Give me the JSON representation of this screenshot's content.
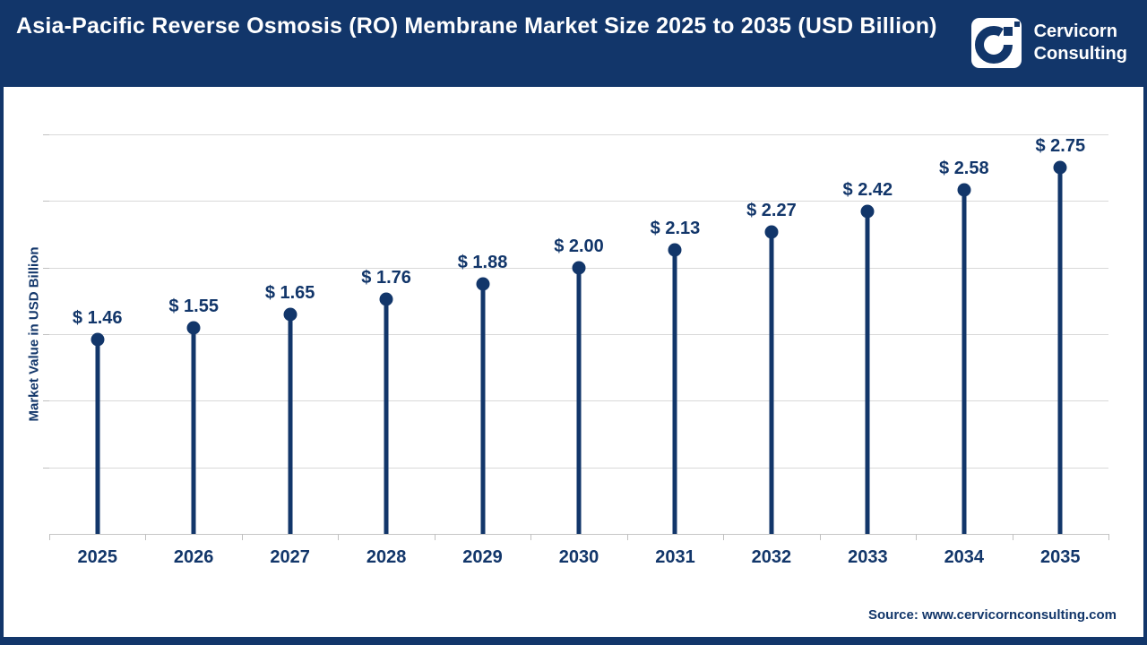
{
  "header": {
    "title": "Asia-Pacific Reverse Osmosis (RO) Membrane Market Size 2025 to 2035 (USD Billion)"
  },
  "logo": {
    "name": "cervicorn-consulting-logo",
    "line1": "Cervicorn",
    "line2": "Consulting"
  },
  "source": {
    "text": "Source: www.cervicornconsulting.com"
  },
  "colors": {
    "navy": "#12366A",
    "gridline": "#D9D9D9",
    "axis": "#C6C6C6",
    "tick": "#C0C0C0",
    "background": "#FFFFFF"
  },
  "chart_data": {
    "type": "bar",
    "variant": "lollipop",
    "title": "Asia-Pacific Reverse Osmosis (RO) Membrane Market Size 2025 to 2035 (USD Billion)",
    "categories": [
      "2025",
      "2026",
      "2027",
      "2028",
      "2029",
      "2030",
      "2031",
      "2032",
      "2033",
      "2034",
      "2035"
    ],
    "values": [
      1.46,
      1.55,
      1.65,
      1.76,
      1.88,
      2.0,
      2.13,
      2.27,
      2.42,
      2.58,
      2.75
    ],
    "value_labels": [
      "$ 1.46",
      "$ 1.55",
      "$ 1.65",
      "$ 1.76",
      "$ 1.88",
      "$ 2.00",
      "$ 2.13",
      "$ 2.27",
      "$ 2.42",
      "$ 2.58",
      "$ 2.75"
    ],
    "xlabel": "",
    "ylabel": "Market Value in USD Billion",
    "ylim": [
      0,
      3.0
    ],
    "gridline_step": 0.5,
    "grid": "horizontal",
    "legend": "none"
  }
}
